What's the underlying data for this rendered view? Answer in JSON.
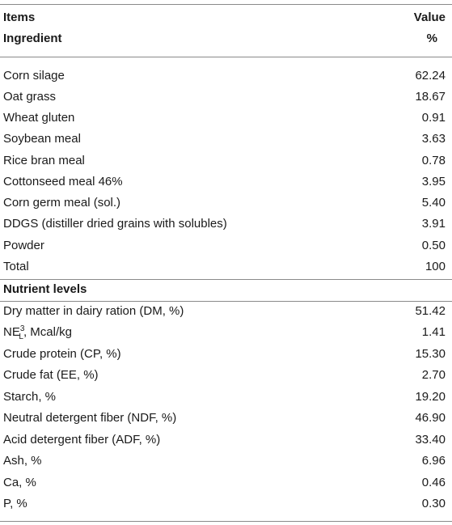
{
  "header": {
    "items_label": "Items",
    "value_label": "Value",
    "ingredient_label": "Ingredient",
    "percent_label": "%"
  },
  "ingredients": [
    {
      "name": "Corn silage",
      "value": "62.24"
    },
    {
      "name": "Oat grass",
      "value": "18.67"
    },
    {
      "name": "Wheat gluten",
      "value": "0.91"
    },
    {
      "name": "Soybean meal",
      "value": "3.63"
    },
    {
      "name": "Rice bran meal",
      "value": "0.78"
    },
    {
      "name": "Cottonseed meal 46%",
      "value": "3.95"
    },
    {
      "name": "Corn germ meal (sol.)",
      "value": "5.40"
    },
    {
      "name": "DDGS (distiller dried grains with solubles)",
      "value": "3.91"
    },
    {
      "name": "Powder",
      "value": "0.50"
    },
    {
      "name": "Total",
      "value": "100"
    }
  ],
  "nutrient_section_label": "Nutrient levels",
  "nutrients": {
    "dm": {
      "name": "Dry matter in dairy ration (DM, %)",
      "value": "51.42"
    },
    "nel": {
      "base": "NE",
      "sup": "3",
      "sub": "L",
      "rest": ", Mcal/kg",
      "value": "1.41"
    },
    "items": [
      {
        "name": "Crude protein (CP, %)",
        "value": "15.30"
      },
      {
        "name": "Crude fat (EE, %)",
        "value": "2.70"
      },
      {
        "name": "Starch, %",
        "value": "19.20"
      },
      {
        "name": "Neutral detergent fiber (NDF, %)",
        "value": "46.90"
      },
      {
        "name": "Acid detergent fiber (ADF, %)",
        "value": "33.40"
      },
      {
        "name": "Ash, %",
        "value": "6.96"
      },
      {
        "name": "Ca, %",
        "value": "0.46"
      },
      {
        "name": "P, %",
        "value": "0.30"
      }
    ]
  }
}
